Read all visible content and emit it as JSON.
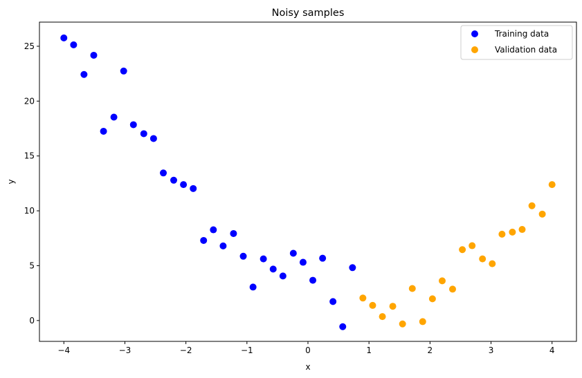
{
  "chart_data": {
    "type": "scatter",
    "title": "Noisy samples",
    "xlabel": "x",
    "ylabel": "y",
    "xlim": [
      -4.4,
      4.4
    ],
    "ylim": [
      -1.9,
      27.2
    ],
    "x_ticks": [
      -4,
      -3,
      -2,
      -1,
      0,
      1,
      2,
      3,
      4
    ],
    "y_ticks": [
      0,
      5,
      10,
      15,
      20,
      25
    ],
    "x_tick_labels": [
      "−4",
      "−3",
      "−2",
      "−1",
      "0",
      "1",
      "2",
      "3",
      "4"
    ],
    "y_tick_labels": [
      "0",
      "5",
      "10",
      "15",
      "20",
      "25"
    ],
    "grid": false,
    "legend": {
      "position": "top-right"
    },
    "series": [
      {
        "name": "Training data",
        "color": "#0000ff",
        "points": [
          [
            -4.0,
            25.76
          ],
          [
            -3.84,
            25.13
          ],
          [
            -3.67,
            22.43
          ],
          [
            -3.51,
            24.18
          ],
          [
            -3.35,
            17.25
          ],
          [
            -3.18,
            18.54
          ],
          [
            -3.02,
            22.74
          ],
          [
            -2.86,
            17.85
          ],
          [
            -2.69,
            17.03
          ],
          [
            -2.53,
            16.59
          ],
          [
            -2.37,
            13.45
          ],
          [
            -2.2,
            12.79
          ],
          [
            -2.04,
            12.39
          ],
          [
            -1.88,
            12.03
          ],
          [
            -1.71,
            7.3
          ],
          [
            -1.55,
            8.27
          ],
          [
            -1.39,
            6.8
          ],
          [
            -1.22,
            7.93
          ],
          [
            -1.06,
            5.86
          ],
          [
            -0.9,
            3.05
          ],
          [
            -0.73,
            5.62
          ],
          [
            -0.57,
            4.69
          ],
          [
            -0.41,
            4.06
          ],
          [
            -0.24,
            6.13
          ],
          [
            -0.08,
            5.31
          ],
          [
            0.08,
            3.67
          ],
          [
            0.24,
            5.68
          ],
          [
            0.41,
            1.73
          ],
          [
            0.57,
            -0.56
          ],
          [
            0.73,
            4.82
          ]
        ]
      },
      {
        "name": "Validation data",
        "color": "#ffa500",
        "points": [
          [
            0.9,
            2.05
          ],
          [
            1.06,
            1.38
          ],
          [
            1.22,
            0.36
          ],
          [
            1.39,
            1.3
          ],
          [
            1.55,
            -0.31
          ],
          [
            1.71,
            2.92
          ],
          [
            1.88,
            -0.1
          ],
          [
            2.04,
            1.98
          ],
          [
            2.2,
            3.62
          ],
          [
            2.37,
            2.86
          ],
          [
            2.53,
            6.46
          ],
          [
            2.69,
            6.82
          ],
          [
            2.86,
            5.62
          ],
          [
            3.02,
            5.18
          ],
          [
            3.18,
            7.87
          ],
          [
            3.35,
            8.06
          ],
          [
            3.51,
            8.3
          ],
          [
            3.67,
            10.46
          ],
          [
            3.84,
            9.7
          ],
          [
            4.0,
            12.39
          ]
        ]
      }
    ]
  }
}
